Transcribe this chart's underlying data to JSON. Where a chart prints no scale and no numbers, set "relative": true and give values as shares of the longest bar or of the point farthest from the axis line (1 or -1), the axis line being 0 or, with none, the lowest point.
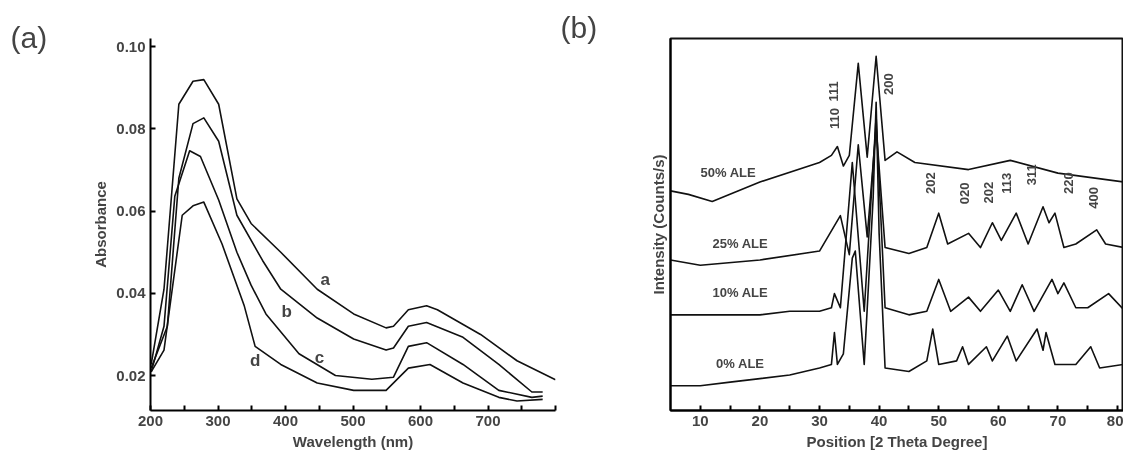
{
  "chart_data": [
    {
      "type": "line",
      "title": "(a)",
      "xlabel": "Wavelength (nm)",
      "ylabel": "Absorbance",
      "xlim": [
        200,
        800
      ],
      "xticks": [
        200,
        {
          "value": 250,
          "label": null
        },
        300,
        {
          "value": 350,
          "label": null
        },
        400,
        {
          "value": 450,
          "label": null
        },
        500,
        {
          "value": 550,
          "label": null
        },
        600,
        {
          "value": 650,
          "label": null
        },
        700,
        {
          "value": 750,
          "label": null
        },
        {
          "value": 800,
          "label": null
        }
      ],
      "ylim": [
        0.0115,
        0.102
      ],
      "yticks": [
        0.02,
        0.04,
        0.06,
        0.08,
        {
          "value": 0.1,
          "label": "0.10"
        }
      ],
      "grid": false,
      "legend": false,
      "marker": "none",
      "line_style": "solid",
      "series": [
        {
          "name": "a",
          "color": "#111111",
          "x": [
            201,
            220,
            242,
            263,
            279,
            301,
            328,
            349,
            393,
            447,
            501,
            549,
            560,
            582,
            609,
            625,
            689,
            743,
            800
          ],
          "values": [
            0.0227,
            0.041,
            0.086,
            0.0916,
            0.092,
            0.086,
            0.063,
            0.057,
            0.05,
            0.041,
            0.035,
            0.0316,
            0.032,
            0.036,
            0.037,
            0.036,
            0.03,
            0.0236,
            0.019
          ]
        },
        {
          "name": "b",
          "color": "#111111",
          "x": [
            201,
            225,
            242,
            263,
            279,
            301,
            328,
            366,
            393,
            447,
            501,
            549,
            560,
            582,
            609,
            663,
            716,
            765,
            781
          ],
          "values": [
            0.0218,
            0.032,
            0.068,
            0.0813,
            0.0827,
            0.077,
            0.059,
            0.048,
            0.041,
            0.034,
            0.0289,
            0.0262,
            0.0267,
            0.032,
            0.0329,
            0.0293,
            0.0227,
            0.016,
            0.016
          ]
        },
        {
          "name": "c",
          "color": "#111111",
          "x": [
            201,
            220,
            236,
            258,
            274,
            301,
            328,
            349,
            371,
            420,
            474,
            528,
            560,
            582,
            609,
            663,
            716,
            765,
            781
          ],
          "values": [
            0.0209,
            0.032,
            0.0636,
            0.0747,
            0.0733,
            0.0627,
            0.05,
            0.042,
            0.035,
            0.0253,
            0.02,
            0.0191,
            0.0196,
            0.0271,
            0.028,
            0.0227,
            0.0164,
            0.0147,
            0.015
          ]
        },
        {
          "name": "d",
          "color": "#111111",
          "x": [
            201,
            220,
            247,
            263,
            279,
            306,
            339,
            355,
            393,
            447,
            501,
            549,
            582,
            614,
            663,
            716,
            743,
            781
          ],
          "values": [
            0.0209,
            0.0262,
            0.059,
            0.0613,
            0.0622,
            0.052,
            0.0369,
            0.0271,
            0.0227,
            0.0182,
            0.0164,
            0.0164,
            0.0218,
            0.0227,
            0.0182,
            0.0147,
            0.0138,
            0.0142
          ]
        }
      ]
    },
    {
      "type": "line",
      "title": "(b)",
      "xlabel": "Position [2 Theta Degree]",
      "ylabel": "Intensity (Counts/s)",
      "relative": true,
      "xlim": [
        5,
        81
      ],
      "xticks": [
        10,
        {
          "value": 15,
          "label": null
        },
        20,
        {
          "value": 25,
          "label": null
        },
        30,
        {
          "value": 35,
          "label": null
        },
        40,
        {
          "value": 45,
          "label": null
        },
        50,
        {
          "value": 55,
          "label": null
        },
        60,
        {
          "value": 65,
          "label": null
        },
        70,
        {
          "value": 75,
          "label": null
        },
        80
      ],
      "grid": false,
      "legend": false,
      "marker": "none",
      "line_style": "solid",
      "series": [
        {
          "name": "0% ALE",
          "color": "#111111",
          "x": [
            5,
            10,
            15,
            20,
            25,
            30,
            32,
            32.5,
            33,
            34,
            35.5,
            36,
            37.5,
            39,
            39.5,
            40,
            41,
            45,
            48,
            49,
            50,
            53,
            54,
            55,
            58,
            59,
            61.5,
            63,
            66.5,
            67.5,
            68,
            69.5,
            73,
            75.5,
            77,
            81
          ],
          "values": [
            0.07,
            0.07,
            0.08,
            0.09,
            0.1,
            0.12,
            0.13,
            0.22,
            0.13,
            0.16,
            0.43,
            0.45,
            0.13,
            0.6,
            0.87,
            0.5,
            0.12,
            0.11,
            0.14,
            0.23,
            0.13,
            0.14,
            0.18,
            0.13,
            0.18,
            0.14,
            0.21,
            0.14,
            0.23,
            0.17,
            0.22,
            0.13,
            0.13,
            0.18,
            0.12,
            0.13
          ]
        },
        {
          "name": "10% ALE",
          "color": "#111111",
          "x": [
            5,
            10,
            15,
            20,
            25,
            30,
            32,
            32.5,
            33.5,
            35.5,
            37.5,
            39.5,
            41,
            45,
            48,
            50,
            52,
            55,
            57,
            60,
            62,
            64,
            66,
            69,
            70,
            71,
            73,
            75,
            78.5,
            81
          ],
          "values": [
            0.27,
            0.27,
            0.27,
            0.27,
            0.28,
            0.28,
            0.29,
            0.33,
            0.29,
            0.7,
            0.28,
            0.83,
            0.29,
            0.27,
            0.28,
            0.37,
            0.28,
            0.32,
            0.28,
            0.34,
            0.28,
            0.355,
            0.28,
            0.37,
            0.33,
            0.36,
            0.29,
            0.29,
            0.33,
            0.285
          ]
        },
        {
          "name": "25% ALE",
          "color": "#111111",
          "x": [
            5,
            10,
            20,
            30,
            33.5,
            35,
            36.5,
            38,
            39.5,
            41,
            45,
            48,
            50,
            51.5,
            55,
            57,
            59,
            60.5,
            63,
            65,
            67.5,
            68.5,
            69.5,
            71,
            73,
            76.5,
            78,
            81
          ],
          "values": [
            0.425,
            0.41,
            0.425,
            0.45,
            0.55,
            0.44,
            0.75,
            0.49,
            0.8,
            0.46,
            0.443,
            0.46,
            0.557,
            0.47,
            0.5,
            0.46,
            0.53,
            0.48,
            0.557,
            0.47,
            0.575,
            0.53,
            0.557,
            0.46,
            0.47,
            0.51,
            0.47,
            0.46
          ]
        },
        {
          "name": "50% ALE",
          "color": "#111111",
          "x": [
            5,
            8,
            12,
            20,
            30,
            32,
            33,
            34,
            35,
            36.5,
            38,
            39.5,
            41,
            43,
            46,
            55,
            62,
            70,
            81
          ],
          "values": [
            0.62,
            0.61,
            0.59,
            0.645,
            0.7,
            0.72,
            0.745,
            0.69,
            0.72,
            0.98,
            0.715,
            1.0,
            0.706,
            0.73,
            0.7,
            0.68,
            0.706,
            0.67,
            0.645
          ]
        }
      ],
      "annotations": [
        {
          "text": "110",
          "x": 33,
          "y": 0.745
        },
        {
          "text": "111",
          "x": 36.5,
          "y": 0.98
        },
        {
          "text": "200",
          "x": 39.5,
          "y": 1.0
        },
        {
          "text": "202",
          "x": 50,
          "y": 0.557
        },
        {
          "text": "020",
          "x": 55,
          "y": 0.5
        },
        {
          "text": "202",
          "x": 59,
          "y": 0.53
        },
        {
          "text": "113",
          "x": 63,
          "y": 0.557
        },
        {
          "text": "311",
          "x": 67.5,
          "y": 0.575
        },
        {
          "text": "220",
          "x": 69.5,
          "y": 0.557
        },
        {
          "text": "400",
          "x": 76.5,
          "y": 0.51
        }
      ]
    }
  ]
}
